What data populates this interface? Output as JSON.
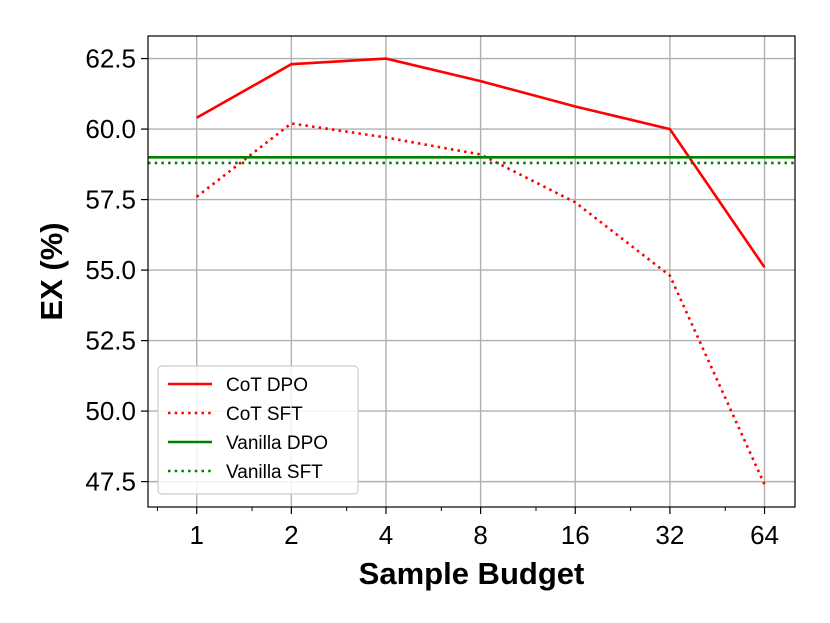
{
  "chart_data": {
    "type": "line",
    "title": "",
    "xlabel": "Sample Budget",
    "ylabel": "EX (%)",
    "x_scale": "log2",
    "x": [
      1,
      2,
      4,
      8,
      16,
      32,
      64
    ],
    "x_tick_labels": [
      "1",
      "2",
      "4",
      "8",
      "16",
      "32",
      "64"
    ],
    "xlim": [
      0.7,
      80
    ],
    "ylim": [
      46.6,
      63.3
    ],
    "y_ticks": [
      47.5,
      50.0,
      52.5,
      55.0,
      57.5,
      60.0,
      62.5
    ],
    "y_tick_labels": [
      "47.5",
      "50.0",
      "52.5",
      "55.0",
      "57.5",
      "60.0",
      "62.5"
    ],
    "grid": true,
    "legend_position": "lower-left",
    "series": [
      {
        "name": "CoT DPO",
        "values": [
          60.4,
          62.3,
          62.5,
          61.7,
          60.8,
          60.0,
          55.1
        ],
        "color": "#ff0000",
        "style": "solid"
      },
      {
        "name": "CoT SFT",
        "values": [
          57.6,
          60.2,
          59.7,
          59.1,
          57.4,
          54.8,
          47.4
        ],
        "color": "#ff0000",
        "style": "dotted"
      },
      {
        "name": "Vanilla DPO",
        "constant": 59.0,
        "color": "#008000",
        "style": "solid"
      },
      {
        "name": "Vanilla SFT",
        "constant": 58.8,
        "color": "#008000",
        "style": "dotted"
      }
    ]
  }
}
